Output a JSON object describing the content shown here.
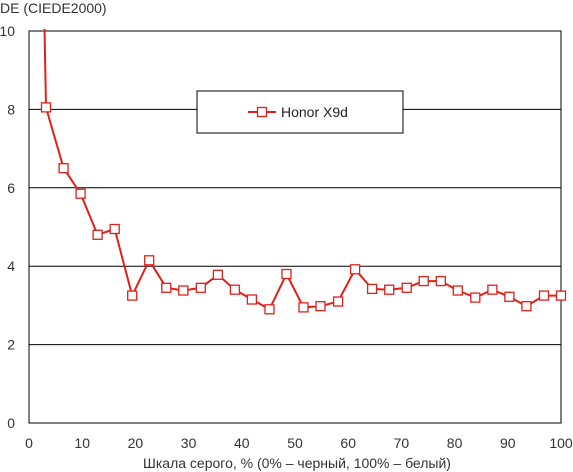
{
  "chart_data": {
    "type": "line",
    "ylabel": "DE (CIEDE2000)",
    "xlabel": "Шкала серого, % (0% – черный, 100% – белый)",
    "xlim": [
      0,
      100
    ],
    "ylim": [
      0,
      10
    ],
    "xticks": [
      "0",
      "10",
      "20",
      "30",
      "40",
      "50",
      "60",
      "70",
      "80",
      "90",
      "100"
    ],
    "yticks": [
      "0",
      "2",
      "4",
      "6",
      "8",
      "10"
    ],
    "grid": "horizontal",
    "legend_position": "upper-center",
    "series": [
      {
        "name": "Honor X9d",
        "color": "#e0201b",
        "marker": "open-square",
        "x": [
          3.2,
          6.5,
          9.7,
          12.9,
          16.1,
          19.4,
          22.6,
          25.8,
          29.0,
          32.3,
          35.5,
          38.7,
          41.9,
          45.2,
          48.4,
          51.6,
          54.8,
          58.1,
          61.3,
          64.5,
          67.7,
          71.0,
          74.2,
          77.4,
          80.6,
          83.9,
          87.1,
          90.3,
          93.5,
          96.8,
          100
        ],
        "y": [
          8.05,
          6.5,
          5.85,
          4.8,
          4.95,
          3.25,
          4.15,
          3.45,
          3.38,
          3.45,
          3.78,
          3.4,
          3.15,
          2.9,
          3.8,
          2.95,
          2.98,
          3.1,
          3.92,
          3.42,
          3.4,
          3.45,
          3.62,
          3.62,
          3.38,
          3.2,
          3.4,
          3.22,
          2.98,
          3.25,
          3.25
        ]
      }
    ]
  }
}
